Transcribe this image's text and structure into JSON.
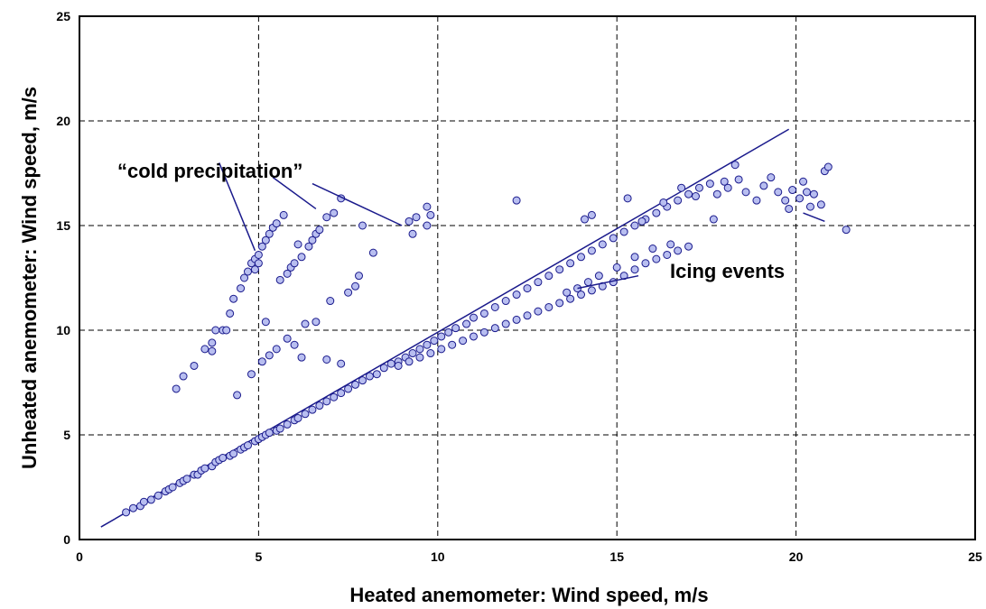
{
  "chart_data": {
    "type": "scatter",
    "title": "",
    "xlabel": "Heated anemometer: Wind speed, m/s",
    "ylabel": "Unheated anemometer: Wind speed, m/s",
    "xlim": [
      0,
      25
    ],
    "ylim": [
      0,
      25
    ],
    "xticks": [
      "0",
      "5",
      "10",
      "15",
      "20",
      "25"
    ],
    "yticks": [
      "0",
      "5",
      "10",
      "15",
      "20",
      "25"
    ],
    "grid": true,
    "legend": "none",
    "marker_color": "#b8bef0",
    "marker_edge": "#1a1a8c",
    "reference_line": {
      "x": [
        0.6,
        19.8
      ],
      "y": [
        0.6,
        19.6
      ]
    },
    "annotations": [
      {
        "text": "“cold precipitation”",
        "leaders": [
          [
            [
              4.9,
              13.8
            ],
            [
              3.9,
              18.0
            ]
          ],
          [
            [
              6.6,
              15.8
            ],
            [
              5.4,
              17.3
            ]
          ],
          [
            [
              9.0,
              15.0
            ],
            [
              6.5,
              17.0
            ]
          ]
        ]
      },
      {
        "text": "Icing events",
        "leaders": [
          [
            [
              13.9,
              12.0
            ],
            [
              15.6,
              12.6
            ]
          ],
          [
            [
              20.2,
              15.6
            ],
            [
              20.8,
              15.2
            ]
          ]
        ]
      }
    ],
    "series": [
      {
        "points": [
          [
            1.3,
            1.3
          ],
          [
            1.5,
            1.5
          ],
          [
            1.7,
            1.6
          ],
          [
            1.8,
            1.8
          ],
          [
            2.0,
            1.9
          ],
          [
            2.2,
            2.1
          ],
          [
            2.4,
            2.3
          ],
          [
            2.5,
            2.4
          ],
          [
            2.6,
            2.5
          ],
          [
            2.8,
            2.7
          ],
          [
            2.9,
            2.8
          ],
          [
            3.0,
            2.9
          ],
          [
            3.2,
            3.1
          ],
          [
            3.3,
            3.1
          ],
          [
            3.4,
            3.3
          ],
          [
            3.5,
            3.4
          ],
          [
            3.7,
            3.5
          ],
          [
            3.8,
            3.7
          ],
          [
            3.9,
            3.8
          ],
          [
            4.0,
            3.9
          ],
          [
            4.2,
            4.0
          ],
          [
            4.3,
            4.1
          ],
          [
            4.5,
            4.3
          ],
          [
            4.6,
            4.4
          ],
          [
            4.7,
            4.5
          ],
          [
            4.9,
            4.7
          ],
          [
            5.0,
            4.8
          ],
          [
            5.1,
            4.9
          ],
          [
            5.2,
            5.0
          ],
          [
            5.3,
            5.1
          ],
          [
            5.5,
            5.2
          ],
          [
            5.6,
            5.3
          ],
          [
            5.8,
            5.5
          ],
          [
            6.0,
            5.7
          ],
          [
            6.1,
            5.8
          ],
          [
            6.3,
            6.0
          ],
          [
            6.5,
            6.2
          ],
          [
            6.7,
            6.4
          ],
          [
            6.9,
            6.6
          ],
          [
            7.1,
            6.8
          ],
          [
            7.3,
            7.0
          ],
          [
            7.5,
            7.2
          ],
          [
            7.7,
            7.4
          ],
          [
            7.9,
            7.6
          ],
          [
            8.1,
            7.8
          ],
          [
            8.3,
            7.9
          ],
          [
            8.5,
            8.2
          ],
          [
            8.7,
            8.4
          ],
          [
            8.9,
            8.5
          ],
          [
            9.1,
            8.7
          ],
          [
            9.3,
            8.9
          ],
          [
            9.5,
            9.1
          ],
          [
            9.7,
            9.3
          ],
          [
            9.9,
            9.5
          ],
          [
            10.1,
            9.7
          ],
          [
            10.3,
            9.9
          ],
          [
            10.5,
            10.1
          ],
          [
            10.8,
            10.3
          ],
          [
            11.0,
            10.6
          ],
          [
            11.3,
            10.8
          ],
          [
            11.6,
            11.1
          ],
          [
            11.9,
            11.4
          ],
          [
            12.2,
            11.7
          ],
          [
            12.5,
            12.0
          ],
          [
            12.8,
            12.3
          ],
          [
            13.1,
            12.6
          ],
          [
            13.4,
            12.9
          ],
          [
            13.7,
            13.2
          ],
          [
            14.0,
            13.5
          ],
          [
            14.3,
            13.8
          ],
          [
            14.6,
            14.1
          ],
          [
            14.9,
            14.4
          ],
          [
            15.2,
            14.7
          ],
          [
            15.5,
            15.0
          ],
          [
            15.8,
            15.3
          ],
          [
            16.1,
            15.6
          ],
          [
            16.4,
            15.9
          ],
          [
            16.7,
            16.2
          ],
          [
            17.0,
            16.5
          ],
          [
            17.3,
            16.8
          ],
          [
            17.6,
            17.0
          ],
          [
            8.9,
            8.3
          ],
          [
            9.2,
            8.5
          ],
          [
            9.5,
            8.7
          ],
          [
            9.8,
            8.9
          ],
          [
            10.1,
            9.1
          ],
          [
            10.4,
            9.3
          ],
          [
            10.7,
            9.5
          ],
          [
            11.0,
            9.7
          ],
          [
            11.3,
            9.9
          ],
          [
            11.6,
            10.1
          ],
          [
            11.9,
            10.3
          ],
          [
            12.2,
            10.5
          ],
          [
            12.5,
            10.7
          ],
          [
            12.8,
            10.9
          ],
          [
            13.1,
            11.1
          ],
          [
            13.4,
            11.3
          ],
          [
            13.7,
            11.5
          ],
          [
            14.0,
            11.7
          ],
          [
            14.3,
            11.9
          ],
          [
            14.6,
            12.1
          ],
          [
            14.9,
            12.3
          ],
          [
            15.2,
            12.6
          ],
          [
            15.5,
            12.9
          ],
          [
            15.8,
            13.2
          ],
          [
            16.1,
            13.4
          ],
          [
            16.4,
            13.6
          ],
          [
            16.7,
            13.8
          ],
          [
            17.0,
            14.0
          ],
          [
            13.6,
            11.8
          ],
          [
            13.9,
            12.0
          ],
          [
            14.2,
            12.3
          ],
          [
            14.5,
            12.6
          ],
          [
            15.0,
            13.0
          ],
          [
            15.5,
            13.5
          ],
          [
            16.0,
            13.9
          ],
          [
            16.5,
            14.1
          ],
          [
            17.8,
            16.5
          ],
          [
            18.1,
            16.8
          ],
          [
            18.4,
            17.2
          ],
          [
            18.6,
            16.6
          ],
          [
            18.9,
            16.2
          ],
          [
            19.1,
            16.9
          ],
          [
            19.3,
            17.3
          ],
          [
            19.5,
            16.6
          ],
          [
            19.7,
            16.2
          ],
          [
            19.9,
            16.7
          ],
          [
            20.1,
            16.3
          ],
          [
            20.2,
            17.1
          ],
          [
            20.4,
            15.9
          ],
          [
            20.5,
            16.5
          ],
          [
            20.7,
            16.0
          ],
          [
            20.8,
            17.6
          ],
          [
            20.9,
            17.8
          ],
          [
            21.4,
            14.8
          ],
          [
            18.0,
            17.1
          ],
          [
            18.3,
            17.9
          ],
          [
            17.7,
            15.3
          ],
          [
            19.8,
            15.8
          ],
          [
            20.3,
            16.6
          ],
          [
            17.2,
            16.4
          ],
          [
            16.8,
            16.8
          ],
          [
            2.7,
            7.2
          ],
          [
            2.9,
            7.8
          ],
          [
            3.2,
            8.3
          ],
          [
            3.5,
            9.1
          ],
          [
            3.7,
            9.4
          ],
          [
            3.8,
            10.0
          ],
          [
            4.0,
            10.0
          ],
          [
            4.2,
            10.8
          ],
          [
            4.3,
            11.5
          ],
          [
            4.5,
            12.0
          ],
          [
            4.6,
            12.5
          ],
          [
            4.7,
            12.8
          ],
          [
            4.8,
            13.2
          ],
          [
            4.9,
            13.4
          ],
          [
            5.0,
            13.6
          ],
          [
            5.1,
            14.0
          ],
          [
            5.2,
            14.3
          ],
          [
            5.3,
            14.6
          ],
          [
            5.4,
            14.9
          ],
          [
            5.5,
            15.1
          ],
          [
            4.4,
            6.9
          ],
          [
            4.8,
            7.9
          ],
          [
            5.1,
            8.5
          ],
          [
            5.3,
            8.8
          ],
          [
            5.2,
            10.4
          ],
          [
            4.1,
            10.0
          ],
          [
            3.7,
            9.0
          ],
          [
            5.0,
            13.2
          ],
          [
            4.9,
            12.9
          ],
          [
            5.9,
            13.0
          ],
          [
            6.0,
            13.2
          ],
          [
            6.2,
            13.5
          ],
          [
            6.4,
            14.0
          ],
          [
            6.5,
            14.3
          ],
          [
            6.6,
            14.6
          ],
          [
            6.7,
            14.8
          ],
          [
            5.7,
            15.5
          ],
          [
            5.8,
            12.7
          ],
          [
            5.6,
            12.4
          ],
          [
            6.1,
            14.1
          ],
          [
            5.5,
            9.1
          ],
          [
            5.8,
            9.6
          ],
          [
            6.0,
            9.3
          ],
          [
            6.2,
            8.7
          ],
          [
            6.3,
            10.3
          ],
          [
            6.6,
            10.4
          ],
          [
            7.0,
            11.4
          ],
          [
            7.3,
            8.4
          ],
          [
            6.9,
            8.6
          ],
          [
            7.5,
            11.8
          ],
          [
            7.7,
            12.1
          ],
          [
            7.8,
            12.6
          ],
          [
            8.2,
            13.7
          ],
          [
            7.1,
            15.6
          ],
          [
            7.3,
            16.3
          ],
          [
            7.9,
            15.0
          ],
          [
            6.9,
            15.4
          ],
          [
            9.2,
            15.2
          ],
          [
            9.3,
            14.6
          ],
          [
            9.4,
            15.4
          ],
          [
            9.7,
            15.0
          ],
          [
            9.8,
            15.5
          ],
          [
            9.7,
            15.9
          ],
          [
            12.2,
            16.2
          ],
          [
            14.1,
            15.3
          ],
          [
            14.3,
            15.5
          ],
          [
            15.3,
            16.3
          ],
          [
            15.7,
            15.2
          ],
          [
            16.3,
            16.1
          ]
        ]
      }
    ]
  }
}
